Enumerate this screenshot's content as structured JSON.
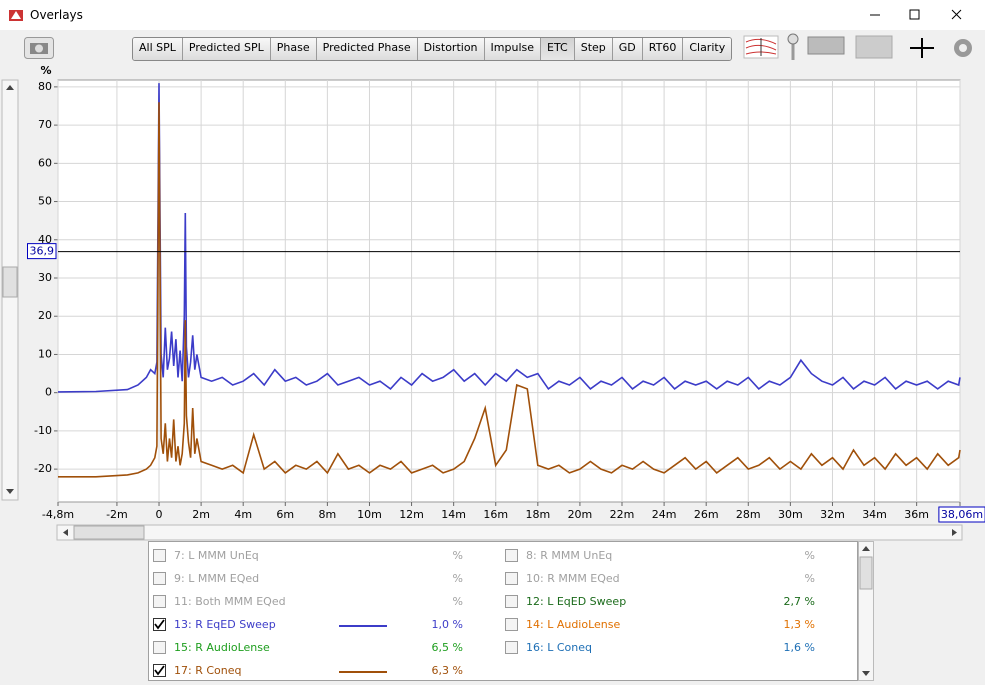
{
  "window": {
    "title": "Overlays"
  },
  "toolbar": {
    "buttons": [
      "All SPL",
      "Predicted SPL",
      "Phase",
      "Predicted Phase",
      "Distortion",
      "Impulse",
      "ETC",
      "Step",
      "GD",
      "RT60",
      "Clarity"
    ],
    "active": "ETC"
  },
  "chart_data": {
    "type": "line",
    "y_unit": "%",
    "xlim": [
      -4.8,
      38.06
    ],
    "ylim": [
      -28.6,
      81.8
    ],
    "xticks": [
      {
        "value": -4.8,
        "label": "-4,8m"
      },
      {
        "value": -2,
        "label": "-2m"
      },
      0,
      {
        "value": 2,
        "label": "2m"
      },
      {
        "value": 4,
        "label": "4m"
      },
      {
        "value": 6,
        "label": "6m"
      },
      {
        "value": 8,
        "label": "8m"
      },
      {
        "value": 10,
        "label": "10m"
      },
      {
        "value": 12,
        "label": "12m"
      },
      {
        "value": 14,
        "label": "14m"
      },
      {
        "value": 16,
        "label": "16m"
      },
      {
        "value": 18,
        "label": "18m"
      },
      {
        "value": 20,
        "label": "20m"
      },
      {
        "value": 22,
        "label": "22m"
      },
      {
        "value": 24,
        "label": "24m"
      },
      {
        "value": 26,
        "label": "26m"
      },
      {
        "value": 28,
        "label": "28m"
      },
      {
        "value": 30,
        "label": "30m"
      },
      {
        "value": 32,
        "label": "32m"
      },
      {
        "value": 34,
        "label": "34m"
      },
      {
        "value": 36,
        "label": "36m"
      },
      {
        "value": 38.06,
        "label": "38,06m"
      }
    ],
    "yticks": [
      -20,
      -10,
      0,
      10,
      20,
      30,
      40,
      50,
      60,
      70,
      80
    ],
    "grid": true,
    "cursor": {
      "value": 36.9,
      "label": "36,9"
    },
    "x": [
      -4.8,
      -3,
      -1.5,
      -1,
      -0.6,
      -0.4,
      -0.2,
      -0.1,
      0,
      0.1,
      0.2,
      0.3,
      0.4,
      0.5,
      0.6,
      0.7,
      0.8,
      0.9,
      1.0,
      1.1,
      1.2,
      1.25,
      1.3,
      1.4,
      1.5,
      1.6,
      1.7,
      1.8,
      2.0,
      2.5,
      3,
      3.5,
      4,
      4.5,
      5,
      5.5,
      6,
      6.5,
      7,
      7.5,
      8,
      8.5,
      9,
      9.5,
      10,
      10.5,
      11,
      11.5,
      12,
      12.5,
      13,
      13.5,
      14,
      14.5,
      15,
      15.5,
      16,
      16.5,
      17,
      17.5,
      18,
      18.5,
      19,
      19.5,
      20,
      20.5,
      21,
      21.5,
      22,
      22.5,
      23,
      23.5,
      24,
      24.5,
      25,
      25.5,
      26,
      26.5,
      27,
      27.5,
      28,
      28.5,
      29,
      29.5,
      30,
      30.5,
      31,
      31.5,
      32,
      32.5,
      33,
      33.5,
      34,
      34.5,
      35,
      35.5,
      36,
      36.5,
      37,
      37.5,
      38,
      38.06
    ],
    "series": [
      {
        "color": "#3c3cc8",
        "values": [
          0.2,
          0.3,
          0.8,
          2,
          4,
          6,
          5,
          8,
          81,
          10,
          4,
          17,
          6,
          9,
          16,
          7,
          14,
          4,
          11,
          3,
          20,
          47,
          12,
          4,
          8,
          15,
          6,
          10,
          4,
          3,
          4,
          2,
          3,
          5,
          2,
          6,
          3,
          4,
          2,
          3,
          5,
          2,
          3,
          4,
          2,
          3,
          1,
          4,
          2,
          5,
          3,
          4,
          6,
          3,
          5,
          2,
          5,
          3,
          6,
          4,
          5,
          1,
          3,
          2,
          4,
          1,
          3,
          2,
          4,
          1,
          3,
          2,
          4,
          1,
          3,
          2,
          3,
          1,
          3,
          2,
          4,
          1,
          3,
          2,
          4,
          8.5,
          5,
          3,
          2,
          4,
          1,
          3,
          2,
          4,
          1,
          3,
          2,
          3,
          1,
          3,
          2,
          4
        ]
      },
      {
        "color": "#a0500a",
        "values": [
          -22,
          -22,
          -21.5,
          -21,
          -20,
          -19,
          -17,
          -14,
          76,
          -12,
          -16,
          -8,
          -18,
          -12,
          -17,
          -7,
          -18,
          -14,
          -19,
          -16,
          -8,
          19,
          -6,
          -13,
          -17,
          -4,
          -16,
          -12,
          -18,
          -19,
          -20,
          -19,
          -21,
          -11,
          -20,
          -18,
          -21,
          -19,
          -20,
          -18,
          -21,
          -16,
          -20,
          -19,
          -21,
          -19,
          -20,
          -18,
          -21,
          -20,
          -19,
          -21,
          -20,
          -18,
          -12,
          -4,
          -19,
          -15,
          2,
          1,
          -19,
          -20,
          -19,
          -21,
          -20,
          -18,
          -20,
          -21,
          -19,
          -20,
          -18,
          -20,
          -21,
          -19,
          -17,
          -20,
          -18,
          -21,
          -19,
          -17,
          -20,
          -19,
          -17,
          -20,
          -18,
          -20,
          -16,
          -19,
          -17,
          -20,
          -15,
          -19,
          -17,
          -20,
          -16,
          -19,
          -17,
          -20,
          -16,
          -19,
          -17,
          -15
        ]
      }
    ]
  },
  "legend": {
    "rows": [
      {
        "name": "7: L MMM UnEq",
        "value": "%",
        "checked": false,
        "color": "#a0a0a0",
        "line": false
      },
      {
        "name": "8: R MMM UnEq",
        "value": "%",
        "checked": false,
        "color": "#a0a0a0",
        "line": false
      },
      {
        "name": "9: L MMM EQed",
        "value": "%",
        "checked": false,
        "color": "#a0a0a0",
        "line": false
      },
      {
        "name": "10: R MMM EQed",
        "value": "%",
        "checked": false,
        "color": "#a0a0a0",
        "line": false
      },
      {
        "name": "11: Both MMM EQed",
        "value": "%",
        "checked": false,
        "color": "#a0a0a0",
        "line": false
      },
      {
        "name": "12: L EqED Sweep",
        "value": "2,7 %",
        "checked": false,
        "color": "#1b6b1b",
        "line": false
      },
      {
        "name": "13: R EqED Sweep",
        "value": "1,0 %",
        "checked": true,
        "color": "#3c3cc8",
        "line": true
      },
      {
        "name": "14: L AudioLense",
        "value": "1,3 %",
        "checked": false,
        "color": "#e07000",
        "line": false
      },
      {
        "name": "15: R AudioLense",
        "value": "6,5 %",
        "checked": false,
        "color": "#1e9e1e",
        "line": false
      },
      {
        "name": "16: L Coneq",
        "value": "1,6 %",
        "checked": false,
        "color": "#1e6fb5",
        "line": false
      },
      {
        "name": "17: R Coneq",
        "value": "6,3 %",
        "checked": true,
        "color": "#a0500a",
        "line": true
      }
    ]
  }
}
